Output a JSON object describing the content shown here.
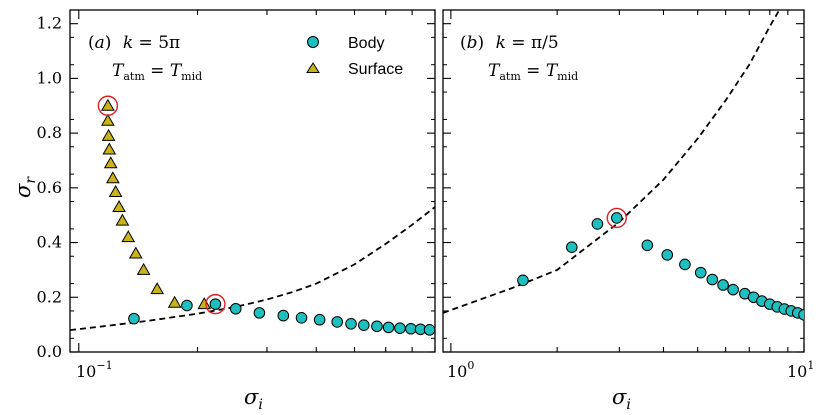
{
  "chart_data": [
    {
      "type": "scatter",
      "panel_label": "(a) k = 5π",
      "annotation": "T_atm = T_mid",
      "xlabel": "σ_i",
      "ylabel": "σ_r",
      "xscale": "log",
      "xlim": [
        0.095,
        0.8
      ],
      "ylim": [
        0.0,
        1.25
      ],
      "x_tick_labels": [
        {
          "value": 0.1,
          "label": "10⁻¹"
        }
      ],
      "y_ticks": [
        0.0,
        0.2,
        0.4,
        0.6,
        0.8,
        1.0,
        1.2
      ],
      "y_tick_labels": [
        "0.0",
        "0.2",
        "0.4",
        "0.6",
        "0.8",
        "1.0",
        "1.2"
      ],
      "legend": {
        "position": "top-right",
        "entries": [
          "Body",
          "Surface"
        ]
      },
      "series": [
        {
          "name": "Body",
          "marker": "circle",
          "color": "#1fbfbf",
          "x": [
            0.138,
            0.188,
            0.222,
            0.25,
            0.287,
            0.33,
            0.367,
            0.408,
            0.452,
            0.49,
            0.528,
            0.57,
            0.61,
            0.652,
            0.695,
            0.735,
            0.775
          ],
          "y": [
            0.122,
            0.17,
            0.175,
            0.158,
            0.143,
            0.133,
            0.125,
            0.118,
            0.11,
            0.103,
            0.098,
            0.094,
            0.09,
            0.087,
            0.085,
            0.083,
            0.081
          ]
        },
        {
          "name": "Surface",
          "marker": "triangle",
          "color": "#c8b418",
          "x": [
            0.1185,
            0.1185,
            0.119,
            0.1195,
            0.1205,
            0.122,
            0.124,
            0.1265,
            0.129,
            0.1335,
            0.1395,
            0.146,
            0.158,
            0.175,
            0.208
          ],
          "y": [
            0.9,
            0.845,
            0.79,
            0.74,
            0.69,
            0.635,
            0.585,
            0.53,
            0.48,
            0.42,
            0.36,
            0.3,
            0.23,
            0.18,
            0.175
          ]
        },
        {
          "name": "Curve",
          "type": "line",
          "style": "dashed",
          "color": "#000000",
          "x": [
            0.095,
            0.12,
            0.15,
            0.2,
            0.25,
            0.3,
            0.35,
            0.4,
            0.5,
            0.6,
            0.7,
            0.8
          ],
          "y": [
            0.08,
            0.097,
            0.114,
            0.14,
            0.165,
            0.192,
            0.22,
            0.25,
            0.32,
            0.395,
            0.465,
            0.53
          ]
        }
      ],
      "highlighted_points": [
        {
          "x": 0.1185,
          "y": 0.9
        },
        {
          "x": 0.222,
          "y": 0.175
        }
      ]
    },
    {
      "type": "scatter",
      "panel_label": "(b) k = π/5",
      "annotation": "T_atm = T_mid",
      "xlabel": "σ_i",
      "ylabel": "",
      "xscale": "log",
      "xlim": [
        0.95,
        10.0
      ],
      "ylim": [
        0.0,
        1.25
      ],
      "x_tick_labels": [
        {
          "value": 1,
          "label": "10⁰"
        },
        {
          "value": 10,
          "label": "10¹"
        }
      ],
      "series": [
        {
          "name": "Body",
          "marker": "circle",
          "color": "#1fbfbf",
          "x": [
            1.6,
            2.2,
            2.6,
            2.95,
            3.6,
            4.1,
            4.6,
            5.1,
            5.5,
            5.9,
            6.3,
            6.8,
            7.2,
            7.6,
            8.0,
            8.4,
            8.8,
            9.2,
            9.6,
            10.0
          ],
          "y": [
            0.262,
            0.383,
            0.468,
            0.49,
            0.39,
            0.355,
            0.32,
            0.29,
            0.265,
            0.245,
            0.228,
            0.213,
            0.2,
            0.186,
            0.175,
            0.165,
            0.157,
            0.15,
            0.143,
            0.136
          ]
        },
        {
          "name": "Curve",
          "type": "line",
          "style": "dashed",
          "color": "#000000",
          "x": [
            0.95,
            1.5,
            2.0,
            3.0,
            4.0,
            5.0,
            6.0,
            7.0,
            8.0,
            8.6
          ],
          "y": [
            0.143,
            0.235,
            0.3,
            0.475,
            0.63,
            0.78,
            0.92,
            1.05,
            1.19,
            1.26
          ]
        }
      ],
      "highlighted_points": [
        {
          "x": 2.95,
          "y": 0.49
        }
      ]
    }
  ],
  "labels": {
    "panel_a": {
      "prefix": "(",
      "letter": "a",
      "suffix": ")",
      "k_symbol": "k",
      "k_value": " = 5π"
    },
    "panel_b": {
      "prefix": "(",
      "letter": "b",
      "suffix": ")",
      "k_symbol": "k",
      "k_value": " = π/5"
    },
    "temp": {
      "T": "T",
      "atm": "atm",
      "eq": " = ",
      "mid": "mid"
    },
    "legend_body": "Body",
    "legend_surface": "Surface",
    "xlabel_base": "σ",
    "xlabel_sub": "i",
    "ylabel_base": "σ",
    "ylabel_sub": "r",
    "xtick_a_base": "10",
    "xtick_a_exp": "−1",
    "xtick_b0_base": "10",
    "xtick_b0_exp": "0",
    "xtick_b1_base": "10",
    "xtick_b1_exp": "1"
  },
  "colors": {
    "body": "#1fbfbf",
    "surface": "#c8b418",
    "highlight": "#e02020",
    "curve": "#000000"
  }
}
